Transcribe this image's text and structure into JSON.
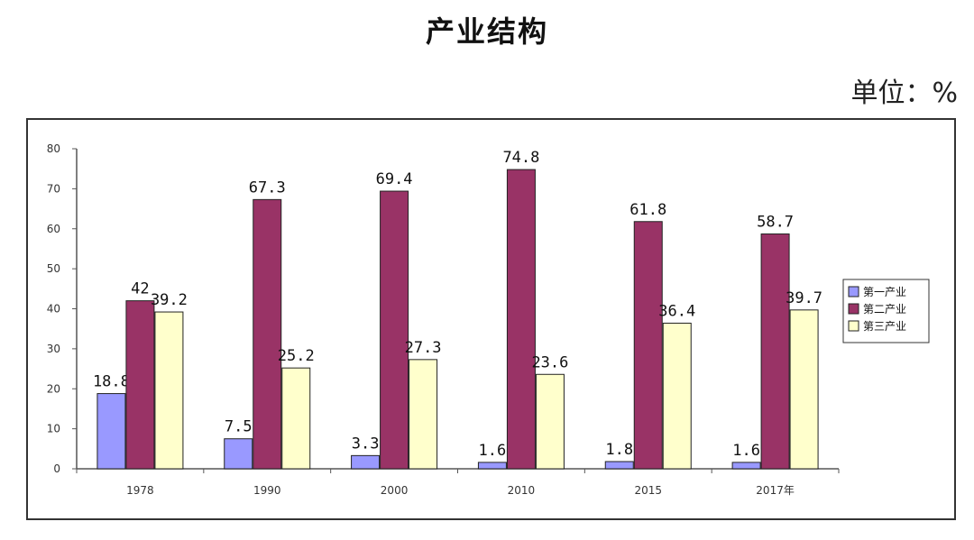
{
  "chart_data": {
    "type": "bar",
    "title": "产业结构",
    "unit_label": "单位：%",
    "categories": [
      "1978",
      "1990",
      "2000",
      "2010",
      "2015",
      "2017年"
    ],
    "series": [
      {
        "name": "第一产业",
        "color": "#9999ff",
        "values": [
          18.8,
          7.5,
          3.3,
          1.6,
          1.8,
          1.6
        ]
      },
      {
        "name": "第二产业",
        "color": "#993366",
        "values": [
          42,
          67.3,
          69.4,
          74.8,
          61.8,
          58.7
        ]
      },
      {
        "name": "第三产业",
        "color": "#ffffcc",
        "values": [
          39.2,
          25.2,
          27.3,
          23.6,
          36.4,
          39.7
        ]
      }
    ],
    "ylim": [
      0,
      80
    ],
    "yticks": [
      0,
      10,
      20,
      30,
      40,
      50,
      60,
      70,
      80
    ],
    "grid": false,
    "legend": "right"
  }
}
